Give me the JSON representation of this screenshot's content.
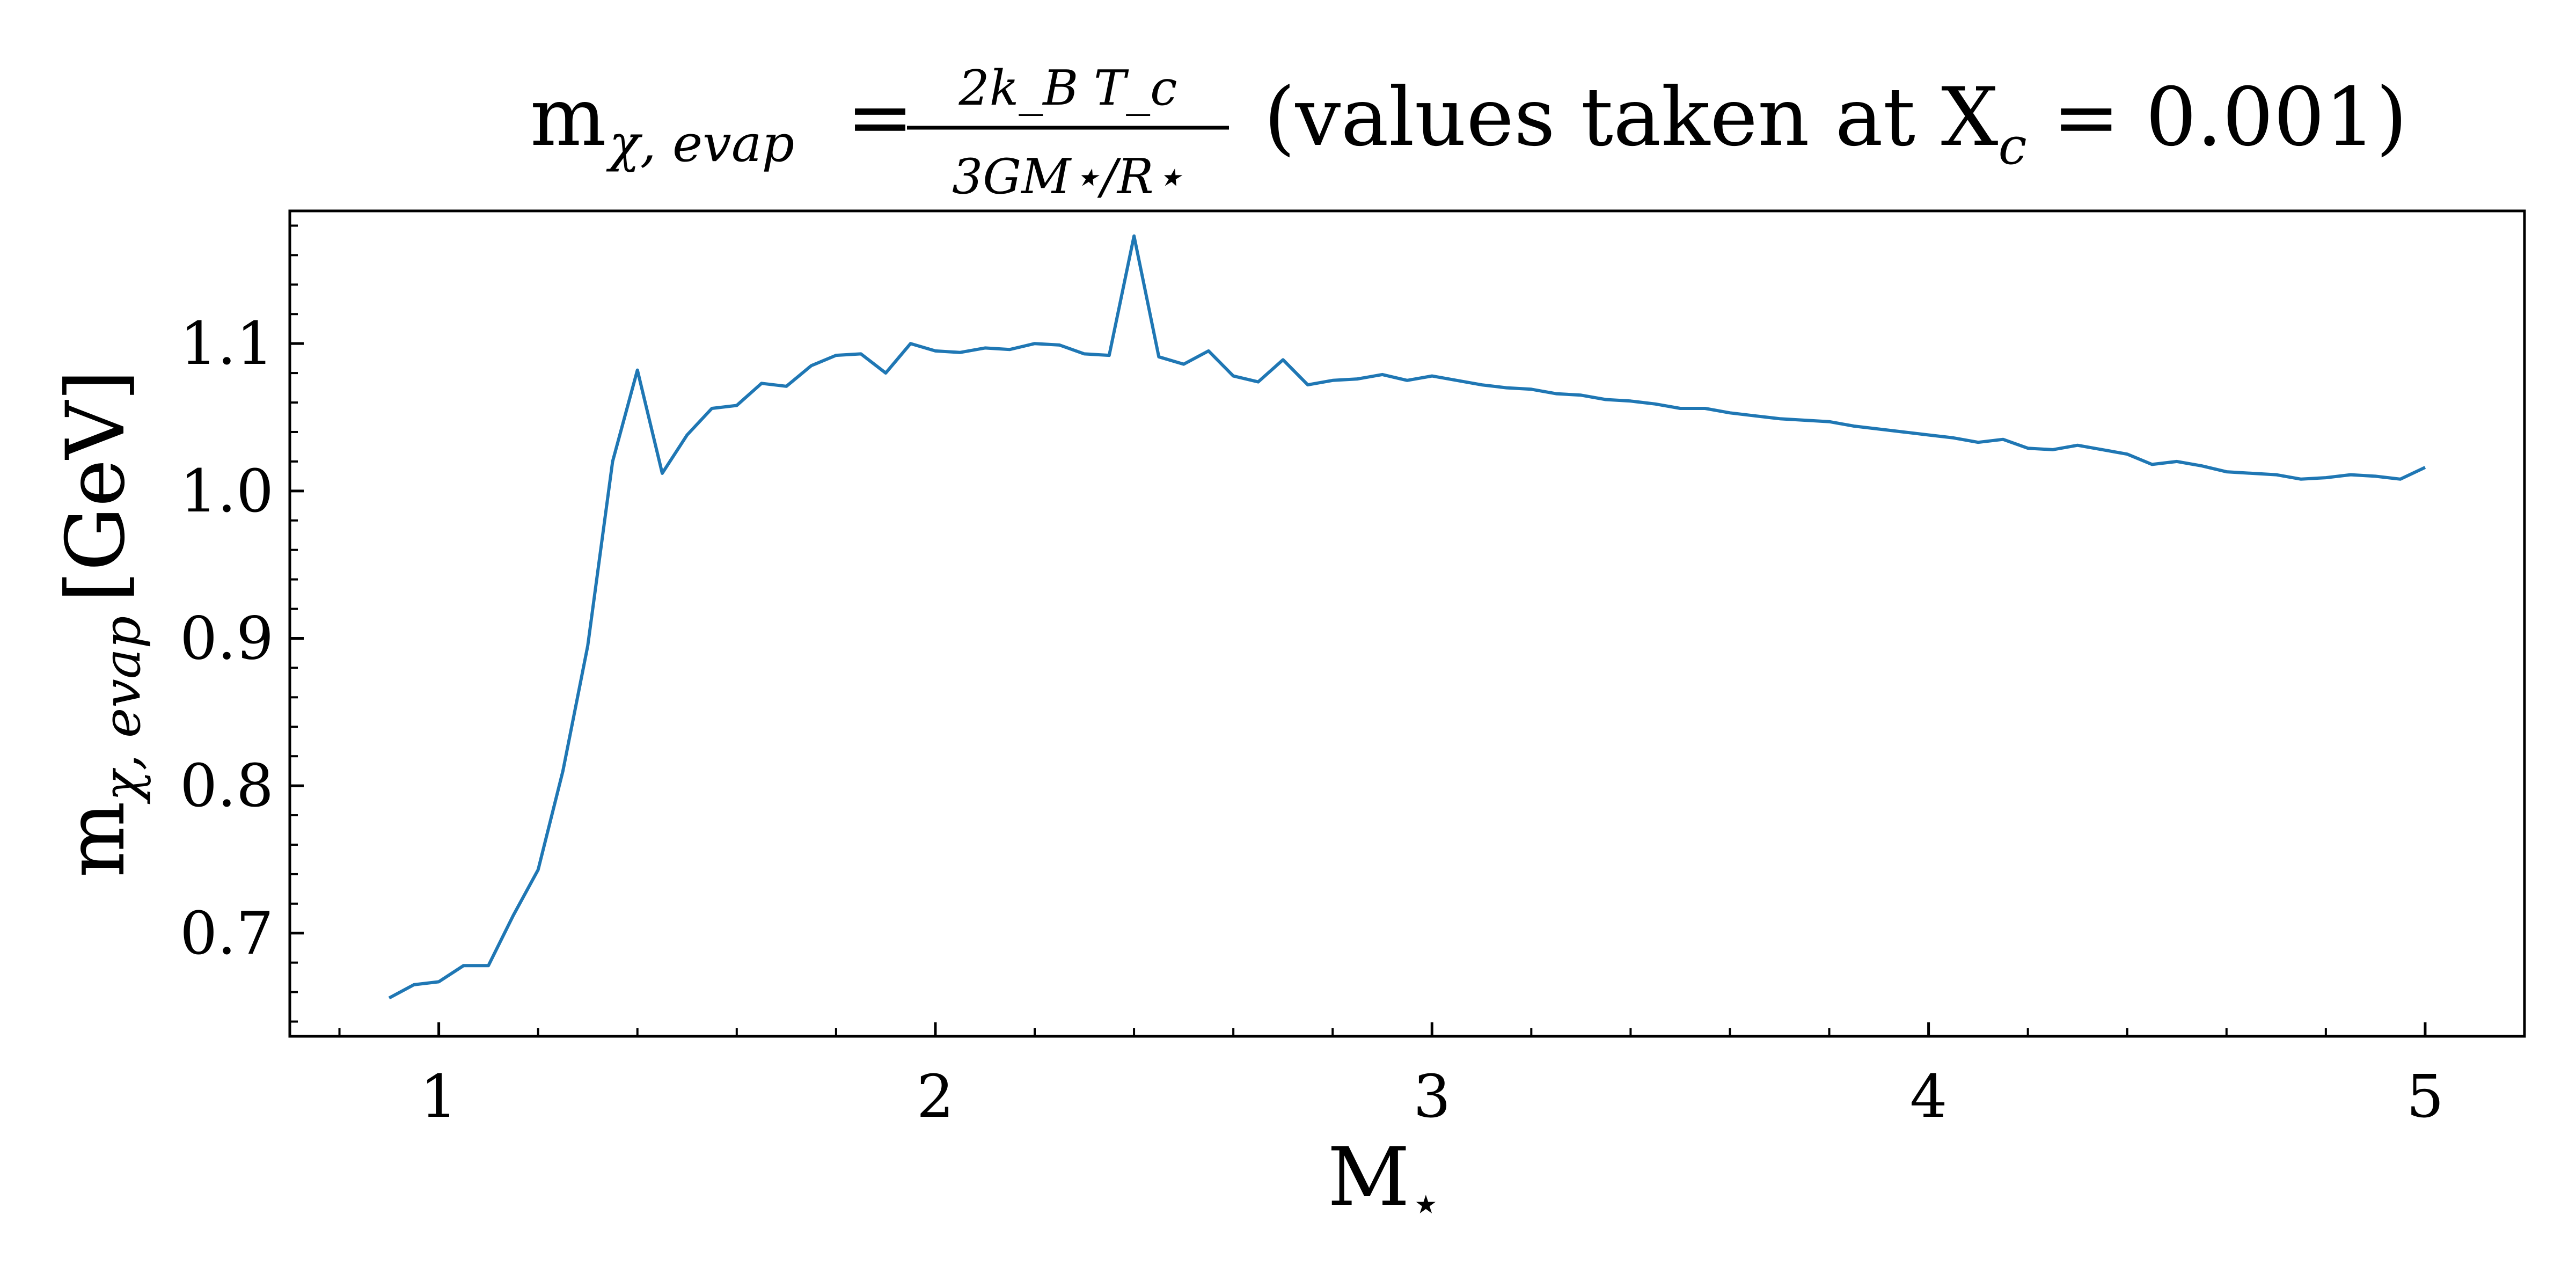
{
  "chart_data": {
    "type": "line",
    "title": {
      "lhs_main": "m",
      "lhs_sub": "χ, evap",
      "equals": "=",
      "frac_num": "2k_B T_c",
      "frac_den": "3GM⋆/R⋆",
      "suffix": "(values taken at X",
      "suffix_sub": "c",
      "suffix_end": " = 0.001)"
    },
    "xlabel": {
      "main": "M",
      "sub": "⋆"
    },
    "ylabel": {
      "main": "m",
      "sub": "χ, evap",
      "unit": "[GeV]"
    },
    "xlim": [
      0.7,
      5.2
    ],
    "ylim": [
      0.63,
      1.19
    ],
    "xticks": [
      1,
      2,
      3,
      4,
      5
    ],
    "xtick_labels": [
      "1",
      "2",
      "3",
      "4",
      "5"
    ],
    "yticks": [
      0.7,
      0.8,
      0.9,
      1.0,
      1.1
    ],
    "ytick_labels": [
      "0.7",
      "0.8",
      "0.9",
      "1.0",
      "1.1"
    ],
    "grid": false,
    "line_color": "#1f77b4",
    "series": [
      {
        "x": [
          0.9,
          0.95,
          1.0,
          1.05,
          1.1,
          1.15,
          1.2,
          1.25,
          1.3,
          1.35,
          1.4,
          1.45,
          1.5,
          1.55,
          1.6,
          1.65,
          1.7,
          1.75,
          1.8,
          1.85,
          1.9,
          1.95,
          2.0,
          2.05,
          2.1,
          2.15,
          2.2,
          2.25,
          2.3,
          2.35,
          2.4,
          2.45,
          2.5,
          2.55,
          2.6,
          2.65,
          2.7,
          2.75,
          2.8,
          2.85,
          2.9,
          2.95,
          3.0,
          3.05,
          3.1,
          3.15,
          3.2,
          3.25,
          3.3,
          3.35,
          3.4,
          3.45,
          3.5,
          3.55,
          3.6,
          3.65,
          3.7,
          3.75,
          3.8,
          3.85,
          3.9,
          3.95,
          4.0,
          4.05,
          4.1,
          4.15,
          4.2,
          4.25,
          4.3,
          4.35,
          4.4,
          4.45,
          4.5,
          4.55,
          4.6,
          4.65,
          4.7,
          4.75,
          4.8,
          4.85,
          4.9,
          4.95,
          5.0
        ],
        "y": [
          0.656,
          0.665,
          0.667,
          0.678,
          0.678,
          0.712,
          0.743,
          0.81,
          0.895,
          1.02,
          1.082,
          1.012,
          1.038,
          1.056,
          1.058,
          1.073,
          1.071,
          1.085,
          1.092,
          1.093,
          1.08,
          1.1,
          1.095,
          1.094,
          1.097,
          1.096,
          1.1,
          1.099,
          1.093,
          1.092,
          1.173,
          1.091,
          1.086,
          1.095,
          1.078,
          1.074,
          1.089,
          1.072,
          1.075,
          1.076,
          1.079,
          1.075,
          1.078,
          1.075,
          1.072,
          1.07,
          1.069,
          1.066,
          1.065,
          1.062,
          1.061,
          1.059,
          1.056,
          1.056,
          1.053,
          1.051,
          1.049,
          1.048,
          1.047,
          1.044,
          1.042,
          1.04,
          1.038,
          1.036,
          1.033,
          1.035,
          1.029,
          1.028,
          1.031,
          1.028,
          1.025,
          1.018,
          1.02,
          1.017,
          1.013,
          1.012,
          1.011,
          1.008,
          1.009,
          1.011,
          1.01,
          1.008,
          1.016
        ]
      }
    ]
  }
}
